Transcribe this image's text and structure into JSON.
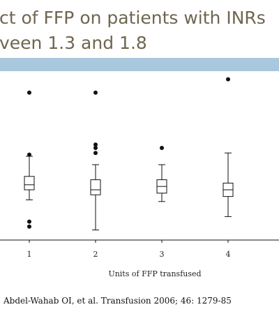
{
  "slide": {
    "title_line1": "ct of FFP on patients with INRs",
    "title_line2": "veen 1.3 and 1.8",
    "citation": "Abdel-Wahab OI, et al.  Transfusion 2006; 46: 1279-85"
  },
  "colors": {
    "title_text": "#6f6650",
    "title_bar": "#a9c7dd",
    "ink": "#111111"
  },
  "chart_data": {
    "type": "box",
    "xlabel": "Units of FFP transfused",
    "ylabel": "",
    "categories": [
      "1",
      "2",
      "3",
      "4"
    ],
    "y_axis_visible": false,
    "grid": false,
    "note": "y-axis ticks cut off in the original; values are relative (0 = bottom of visible axis frame, 100 = top)",
    "ylim": [
      0,
      100
    ],
    "boxes": [
      {
        "category": "1",
        "whisker_low": 24,
        "q1": 30,
        "median": 33,
        "q3": 38,
        "whisker_high": 50,
        "outliers": [
          11,
          8,
          51,
          88
        ]
      },
      {
        "category": "2",
        "whisker_low": 6,
        "q1": 27,
        "median": 30,
        "q3": 36,
        "whisker_high": 45,
        "outliers": [
          52,
          55,
          57,
          88
        ]
      },
      {
        "category": "3",
        "whisker_low": 23,
        "q1": 28,
        "median": 32,
        "q3": 36,
        "whisker_high": 45,
        "outliers": [
          55
        ]
      },
      {
        "category": "4",
        "whisker_low": 14,
        "q1": 26,
        "median": 30,
        "q3": 34,
        "whisker_high": 52,
        "outliers": [
          96
        ]
      }
    ]
  }
}
